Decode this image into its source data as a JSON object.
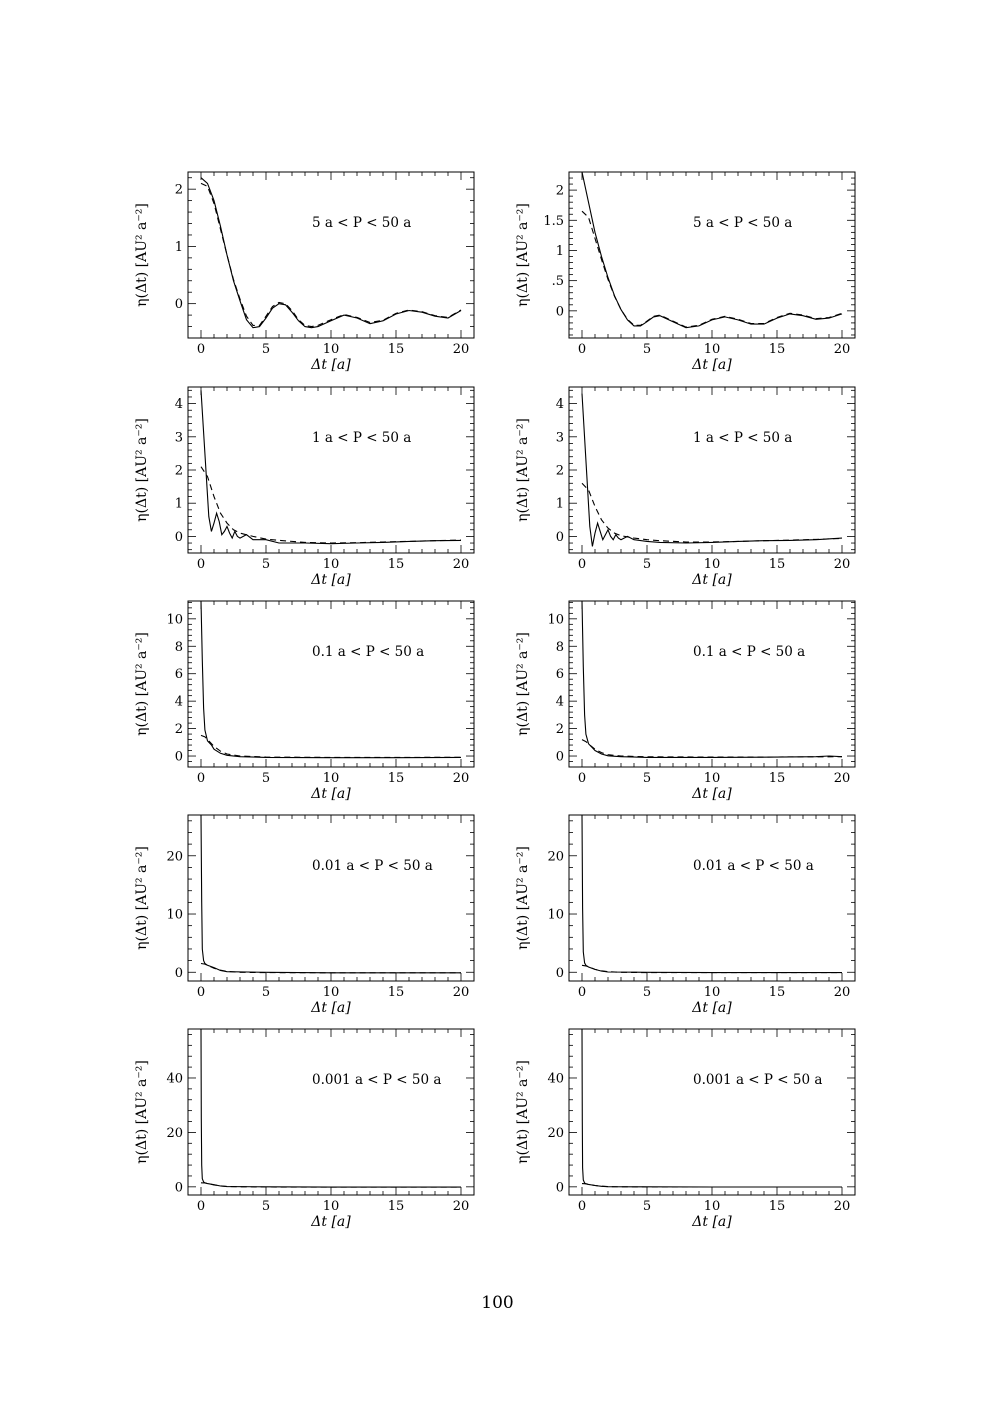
{
  "page": {
    "number": "100"
  },
  "chart_data": [
    {
      "type": "line",
      "panel": "a1",
      "annotation": "5 a < P < 50 a",
      "xlabel": "Δt [a]",
      "ylabel": "η(Δt) [AU² a⁻²]",
      "xlim": [
        -1,
        21
      ],
      "ylim": [
        -0.6,
        2.3
      ],
      "yticks": [
        0,
        1,
        2
      ],
      "xticks": [
        0,
        5,
        10,
        15,
        20
      ],
      "series": [
        {
          "style": "solid",
          "x": [
            0,
            0.5,
            1,
            1.5,
            2,
            2.5,
            3,
            3.5,
            4,
            4.5,
            5,
            5.5,
            6,
            6.5,
            7,
            7.5,
            8,
            8.5,
            9,
            10,
            11,
            12,
            13,
            14,
            15,
            16,
            17,
            18,
            19,
            20
          ],
          "y": [
            2.2,
            2.1,
            1.8,
            1.35,
            0.85,
            0.4,
            0.05,
            -0.28,
            -0.42,
            -0.4,
            -0.25,
            -0.08,
            0.0,
            -0.02,
            -0.15,
            -0.3,
            -0.4,
            -0.42,
            -0.4,
            -0.3,
            -0.2,
            -0.25,
            -0.35,
            -0.3,
            -0.18,
            -0.12,
            -0.15,
            -0.22,
            -0.25,
            -0.12
          ]
        },
        {
          "style": "dashed",
          "x": [
            0,
            0.5,
            1,
            1.5,
            2,
            2.5,
            3,
            3.5,
            4,
            4.5,
            5,
            5.5,
            6,
            6.5,
            7,
            7.5,
            8,
            8.5,
            9,
            10,
            11,
            12,
            13,
            14,
            15,
            16,
            17,
            18,
            19,
            20
          ],
          "y": [
            2.1,
            2.05,
            1.75,
            1.3,
            0.85,
            0.42,
            0.08,
            -0.22,
            -0.38,
            -0.38,
            -0.22,
            -0.05,
            0.02,
            0.0,
            -0.12,
            -0.28,
            -0.38,
            -0.4,
            -0.38,
            -0.28,
            -0.19,
            -0.24,
            -0.33,
            -0.29,
            -0.17,
            -0.11,
            -0.14,
            -0.21,
            -0.24,
            -0.11
          ]
        }
      ]
    },
    {
      "type": "line",
      "panel": "b1",
      "annotation": "5 a < P < 50 a",
      "xlabel": "Δt [a]",
      "ylabel": "η(Δt) [AU² a⁻²]",
      "xlim": [
        -1,
        21
      ],
      "ylim": [
        -0.45,
        2.3
      ],
      "yticks": [
        0,
        0.5,
        1,
        1.5,
        2
      ],
      "ytick_labels": [
        "0",
        ".5",
        "1",
        "1.5",
        "2"
      ],
      "xticks": [
        0,
        5,
        10,
        15,
        20
      ],
      "series": [
        {
          "style": "solid",
          "x": [
            0,
            0.5,
            1,
            1.5,
            2,
            2.5,
            3,
            3.5,
            4,
            4.5,
            5,
            5.5,
            6,
            7,
            8,
            9,
            10,
            11,
            12,
            13,
            14,
            15,
            16,
            17,
            18,
            19,
            20
          ],
          "y": [
            2.3,
            1.8,
            1.3,
            0.9,
            0.55,
            0.25,
            0.02,
            -0.15,
            -0.25,
            -0.25,
            -0.18,
            -0.1,
            -0.08,
            -0.18,
            -0.28,
            -0.25,
            -0.15,
            -0.1,
            -0.15,
            -0.22,
            -0.22,
            -0.12,
            -0.05,
            -0.08,
            -0.14,
            -0.12,
            -0.05
          ]
        },
        {
          "style": "dashed",
          "x": [
            0,
            0.5,
            1,
            1.5,
            2,
            2.5,
            3,
            3.5,
            4,
            4.5,
            5,
            5.5,
            6,
            7,
            8,
            9,
            10,
            11,
            12,
            13,
            14,
            15,
            16,
            17,
            18,
            19,
            20
          ],
          "y": [
            1.65,
            1.55,
            1.2,
            0.85,
            0.52,
            0.24,
            0.02,
            -0.14,
            -0.24,
            -0.24,
            -0.17,
            -0.09,
            -0.07,
            -0.17,
            -0.27,
            -0.24,
            -0.14,
            -0.09,
            -0.14,
            -0.21,
            -0.21,
            -0.11,
            -0.04,
            -0.07,
            -0.13,
            -0.11,
            -0.04
          ]
        }
      ]
    },
    {
      "type": "line",
      "panel": "a2",
      "annotation": "1 a < P < 50 a",
      "xlabel": "Δt [a]",
      "ylabel": "η(Δt) [AU² a⁻²]",
      "xlim": [
        -1,
        21
      ],
      "ylim": [
        -0.5,
        4.5
      ],
      "yticks": [
        0,
        1,
        2,
        3,
        4
      ],
      "xticks": [
        0,
        5,
        10,
        15,
        20
      ],
      "series": [
        {
          "style": "solid",
          "x": [
            0,
            0.3,
            0.6,
            0.8,
            1,
            1.2,
            1.4,
            1.6,
            1.8,
            2,
            2.2,
            2.4,
            2.6,
            2.8,
            3,
            3.5,
            4,
            5,
            6,
            8,
            10,
            12,
            14,
            16,
            18,
            20
          ],
          "y": [
            4.4,
            2.5,
            0.6,
            0.15,
            0.4,
            0.7,
            0.45,
            0.05,
            0.15,
            0.3,
            0.1,
            -0.05,
            0.15,
            0.0,
            -0.05,
            0.05,
            -0.1,
            -0.1,
            -0.2,
            -0.2,
            -0.22,
            -0.2,
            -0.18,
            -0.15,
            -0.13,
            -0.12
          ]
        },
        {
          "style": "dashed",
          "x": [
            0,
            0.5,
            1,
            1.5,
            2,
            2.5,
            3,
            4,
            5,
            6,
            8,
            10,
            12,
            14,
            16,
            18,
            20
          ],
          "y": [
            2.1,
            1.8,
            1.2,
            0.7,
            0.4,
            0.2,
            0.1,
            0.0,
            -0.08,
            -0.12,
            -0.18,
            -0.2,
            -0.19,
            -0.17,
            -0.15,
            -0.13,
            -0.11
          ]
        }
      ]
    },
    {
      "type": "line",
      "panel": "b2",
      "annotation": "1 a < P < 50 a",
      "xlabel": "Δt [a]",
      "ylabel": "η(Δt) [AU² a⁻²]",
      "xlim": [
        -1,
        21
      ],
      "ylim": [
        -0.5,
        4.5
      ],
      "yticks": [
        0,
        1,
        2,
        3,
        4
      ],
      "xticks": [
        0,
        5,
        10,
        15,
        20
      ],
      "series": [
        {
          "style": "solid",
          "x": [
            0,
            0.3,
            0.6,
            0.8,
            1,
            1.2,
            1.4,
            1.6,
            1.8,
            2,
            2.2,
            2.4,
            2.6,
            2.8,
            3,
            3.5,
            4,
            5,
            6,
            8,
            10,
            12,
            14,
            16,
            18,
            20
          ],
          "y": [
            4.3,
            2.3,
            0.3,
            -0.3,
            0.1,
            0.4,
            0.15,
            -0.1,
            0.05,
            0.2,
            0.0,
            -0.1,
            0.05,
            -0.05,
            -0.1,
            0.0,
            -0.1,
            -0.15,
            -0.18,
            -0.2,
            -0.18,
            -0.15,
            -0.13,
            -0.12,
            -0.1,
            -0.05
          ]
        },
        {
          "style": "dashed",
          "x": [
            0,
            0.5,
            1,
            1.5,
            2,
            2.5,
            3,
            4,
            5,
            6,
            8,
            10,
            12,
            14,
            16,
            18,
            20
          ],
          "y": [
            1.6,
            1.4,
            0.9,
            0.5,
            0.25,
            0.1,
            0.02,
            -0.05,
            -0.1,
            -0.13,
            -0.17,
            -0.17,
            -0.15,
            -0.13,
            -0.11,
            -0.09,
            -0.06
          ]
        }
      ]
    },
    {
      "type": "line",
      "panel": "a3",
      "annotation": "0.1 a < P < 50 a",
      "xlabel": "Δt [a]",
      "ylabel": "η(Δt) [AU² a⁻²]",
      "xlim": [
        -1,
        21
      ],
      "ylim": [
        -0.8,
        11.3
      ],
      "yticks": [
        0,
        2,
        4,
        6,
        8,
        10
      ],
      "xticks": [
        0,
        5,
        10,
        15,
        20
      ],
      "series": [
        {
          "style": "solid",
          "x": [
            0,
            0.1,
            0.2,
            0.3,
            0.5,
            0.8,
            1,
            1.5,
            2,
            3,
            5,
            10,
            15,
            20
          ],
          "y": [
            11.3,
            7,
            3.5,
            1.9,
            1.1,
            0.8,
            0.5,
            0.2,
            0.05,
            -0.05,
            -0.1,
            -0.12,
            -0.12,
            -0.1
          ]
        },
        {
          "style": "dashed",
          "x": [
            0,
            0.3,
            0.6,
            1,
            1.5,
            2,
            3,
            5,
            10,
            15,
            20
          ],
          "y": [
            1.5,
            1.4,
            1.1,
            0.7,
            0.35,
            0.15,
            0.0,
            -0.08,
            -0.1,
            -0.1,
            -0.09
          ]
        }
      ]
    },
    {
      "type": "line",
      "panel": "b3",
      "annotation": "0.1 a < P < 50 a",
      "xlabel": "Δt [a]",
      "ylabel": "η(Δt) [AU² a⁻²]",
      "xlim": [
        -1,
        21
      ],
      "ylim": [
        -0.8,
        11.3
      ],
      "yticks": [
        0,
        2,
        4,
        6,
        8,
        10
      ],
      "xticks": [
        0,
        5,
        10,
        15,
        20
      ],
      "series": [
        {
          "style": "solid",
          "x": [
            0,
            0.1,
            0.2,
            0.3,
            0.5,
            0.8,
            1,
            1.5,
            2,
            3,
            5,
            10,
            15,
            18,
            19,
            20
          ],
          "y": [
            11.3,
            6.5,
            3,
            1.6,
            0.9,
            0.6,
            0.4,
            0.15,
            0.02,
            -0.05,
            -0.1,
            -0.1,
            -0.08,
            -0.05,
            0.0,
            -0.05
          ]
        },
        {
          "style": "dashed",
          "x": [
            0,
            0.3,
            0.6,
            1,
            1.5,
            2,
            3,
            5,
            10,
            15,
            20
          ],
          "y": [
            1.2,
            1.05,
            0.8,
            0.5,
            0.25,
            0.1,
            0.0,
            -0.06,
            -0.08,
            -0.07,
            -0.05
          ]
        }
      ]
    },
    {
      "type": "line",
      "panel": "a4",
      "annotation": "0.01 a < P < 50 a",
      "xlabel": "Δt [a]",
      "ylabel": "η(Δt) [AU² a⁻²]",
      "xlim": [
        -1,
        21
      ],
      "ylim": [
        -1.5,
        27
      ],
      "yticks": [
        0,
        10,
        20
      ],
      "xticks": [
        0,
        5,
        10,
        15,
        20
      ],
      "series": [
        {
          "style": "solid",
          "x": [
            0,
            0.05,
            0.1,
            0.2,
            0.3,
            0.5,
            1,
            1.5,
            2,
            5,
            10,
            20
          ],
          "y": [
            27,
            12,
            4,
            2,
            1.5,
            1.2,
            0.8,
            0.3,
            0.1,
            0,
            -0.1,
            -0.1
          ]
        },
        {
          "style": "dashed",
          "x": [
            0,
            0.3,
            0.6,
            1,
            1.5,
            2,
            3,
            5,
            10,
            20
          ],
          "y": [
            1.5,
            1.4,
            1.1,
            0.7,
            0.35,
            0.15,
            0,
            -0.05,
            -0.1,
            -0.1
          ]
        }
      ]
    },
    {
      "type": "line",
      "panel": "b4",
      "annotation": "0.01 a < P < 50 a",
      "xlabel": "Δt [a]",
      "ylabel": "η(Δt) [AU² a⁻²]",
      "xlim": [
        -1,
        21
      ],
      "ylim": [
        -1.5,
        27
      ],
      "yticks": [
        0,
        10,
        20
      ],
      "xticks": [
        0,
        5,
        10,
        15,
        20
      ],
      "series": [
        {
          "style": "solid",
          "x": [
            0,
            0.05,
            0.1,
            0.2,
            0.3,
            0.5,
            1,
            1.5,
            2,
            5,
            10,
            20
          ],
          "y": [
            27,
            11,
            3.5,
            1.6,
            1.2,
            0.9,
            0.5,
            0.2,
            0.05,
            0,
            -0.05,
            -0.05
          ]
        },
        {
          "style": "dashed",
          "x": [
            0,
            0.3,
            0.6,
            1,
            1.5,
            2,
            3,
            5,
            10,
            20
          ],
          "y": [
            1.2,
            1.1,
            0.85,
            0.5,
            0.25,
            0.1,
            0,
            -0.05,
            -0.05,
            -0.05
          ]
        }
      ]
    },
    {
      "type": "line",
      "panel": "a5",
      "annotation": "0.001 a < P < 50 a",
      "xlabel": "Δt [a]",
      "ylabel": "η(Δt) [AU² a⁻²]",
      "xlim": [
        -1,
        21
      ],
      "ylim": [
        -3,
        58
      ],
      "yticks": [
        0,
        20,
        40
      ],
      "xticks": [
        0,
        5,
        10,
        15,
        20
      ],
      "series": [
        {
          "style": "solid",
          "x": [
            0,
            0.02,
            0.05,
            0.1,
            0.2,
            0.3,
            0.5,
            1,
            1.5,
            2,
            5,
            10,
            20
          ],
          "y": [
            58,
            25,
            8,
            3,
            1.8,
            1.5,
            1.2,
            0.8,
            0.3,
            0.1,
            0,
            -0.1,
            -0.1
          ]
        },
        {
          "style": "dashed",
          "x": [
            0,
            0.3,
            0.6,
            1,
            1.5,
            2,
            3,
            5,
            10,
            20
          ],
          "y": [
            1.5,
            1.4,
            1.1,
            0.7,
            0.35,
            0.15,
            0,
            -0.05,
            -0.1,
            -0.1
          ]
        }
      ]
    },
    {
      "type": "line",
      "panel": "b5",
      "annotation": "0.001 a < P < 50 a",
      "xlabel": "Δt [a]",
      "ylabel": "η(Δt) [AU² a⁻²]",
      "xlim": [
        -1,
        21
      ],
      "ylim": [
        -3,
        58
      ],
      "yticks": [
        0,
        20,
        40
      ],
      "xticks": [
        0,
        5,
        10,
        15,
        20
      ],
      "series": [
        {
          "style": "solid",
          "x": [
            0,
            0.02,
            0.05,
            0.1,
            0.2,
            0.3,
            0.5,
            1,
            1.5,
            2,
            5,
            10,
            20
          ],
          "y": [
            58,
            24,
            7,
            2.5,
            1.4,
            1.1,
            0.9,
            0.5,
            0.2,
            0.05,
            0,
            -0.05,
            -0.05
          ]
        },
        {
          "style": "dashed",
          "x": [
            0,
            0.3,
            0.6,
            1,
            1.5,
            2,
            3,
            5,
            10,
            20
          ],
          "y": [
            1.2,
            1.1,
            0.85,
            0.5,
            0.25,
            0.1,
            0,
            -0.05,
            -0.05,
            -0.05
          ]
        }
      ]
    }
  ]
}
